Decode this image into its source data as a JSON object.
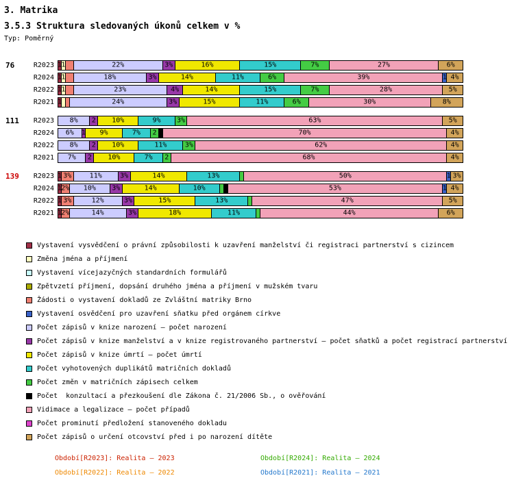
{
  "title": "3. Matrika",
  "subtitle": "3.5.3 Struktura sledovaných úkonů celkem v %",
  "type_label": "Typ: Poměrný",
  "colors": {
    "vysvedceni": "#A03048",
    "zmena_jmena": "#FFFFC0",
    "formulare": "#C8FFFF",
    "zpetvzeti": "#AAAA00",
    "zadosti_brno": "#F08072",
    "osvedceni_cirkev": "#3A62C8",
    "narozeni": "#CCCCFF",
    "manzelstvi": "#9838A8",
    "umrti": "#F0E800",
    "duplikaty": "#33CCCC",
    "zmeny": "#44CC44",
    "konzultace": "#000000",
    "vidimace": "#F2A2B8",
    "prominuti": "#DD44CC",
    "otcovstvi": "#D2A45A"
  },
  "chart_data": {
    "type": "bar",
    "stacked": true,
    "orientation": "horizontal",
    "unit": "%",
    "x_range": [
      0,
      100
    ],
    "grid": false,
    "groups": [
      {
        "label": "76",
        "color": "#000000",
        "rows": [
          {
            "period": "R2023",
            "segments": [
              {
                "key": "vysvedceni",
                "value": 1,
                "label": "1"
              },
              {
                "key": "zmena_jmena",
                "value": 1,
                "label": "1"
              },
              {
                "key": "zadosti_brno",
                "value": 2,
                "label": ""
              },
              {
                "key": "narozeni",
                "value": 22,
                "label": "22%"
              },
              {
                "key": "manzelstvi",
                "value": 3,
                "label": "3%"
              },
              {
                "key": "umrti",
                "value": 16,
                "label": "16%"
              },
              {
                "key": "duplikaty",
                "value": 15,
                "label": "15%"
              },
              {
                "key": "zmeny",
                "value": 7,
                "label": "7%"
              },
              {
                "key": "vidimace",
                "value": 27,
                "label": "27%"
              },
              {
                "key": "otcovstvi",
                "value": 6,
                "label": "6%"
              }
            ]
          },
          {
            "period": "R2024",
            "segments": [
              {
                "key": "vysvedceni",
                "value": 1,
                "label": "1"
              },
              {
                "key": "zmena_jmena",
                "value": 1,
                "label": "1"
              },
              {
                "key": "zadosti_brno",
                "value": 2,
                "label": ""
              },
              {
                "key": "narozeni",
                "value": 18,
                "label": "18%"
              },
              {
                "key": "manzelstvi",
                "value": 3,
                "label": "3%"
              },
              {
                "key": "umrti",
                "value": 14,
                "label": "14%"
              },
              {
                "key": "duplikaty",
                "value": 11,
                "label": "11%"
              },
              {
                "key": "zmeny",
                "value": 6,
                "label": "6%"
              },
              {
                "key": "vidimace",
                "value": 39,
                "label": "39%"
              },
              {
                "key": "osvedceni_cirkev",
                "value": 1,
                "label": "1"
              },
              {
                "key": "otcovstvi",
                "value": 4,
                "label": "4%"
              }
            ]
          },
          {
            "period": "R2022",
            "segments": [
              {
                "key": "vysvedceni",
                "value": 1,
                "label": "1"
              },
              {
                "key": "zmena_jmena",
                "value": 1,
                "label": "1"
              },
              {
                "key": "zadosti_brno",
                "value": 2,
                "label": ""
              },
              {
                "key": "narozeni",
                "value": 23,
                "label": "23%"
              },
              {
                "key": "manzelstvi",
                "value": 4,
                "label": "4%"
              },
              {
                "key": "umrti",
                "value": 14,
                "label": "14%"
              },
              {
                "key": "duplikaty",
                "value": 15,
                "label": "15%"
              },
              {
                "key": "zmeny",
                "value": 7,
                "label": "7%"
              },
              {
                "key": "vidimace",
                "value": 28,
                "label": "28%"
              },
              {
                "key": "otcovstvi",
                "value": 5,
                "label": "5%"
              }
            ]
          },
          {
            "period": "R2021",
            "segments": [
              {
                "key": "vysvedceni",
                "value": 1,
                "label": "1"
              },
              {
                "key": "zmena_jmena",
                "value": 1,
                "label": ""
              },
              {
                "key": "zadosti_brno",
                "value": 1,
                "label": ""
              },
              {
                "key": "narozeni",
                "value": 24,
                "label": "24%"
              },
              {
                "key": "manzelstvi",
                "value": 3,
                "label": "3%"
              },
              {
                "key": "umrti",
                "value": 15,
                "label": "15%"
              },
              {
                "key": "duplikaty",
                "value": 11,
                "label": "11%"
              },
              {
                "key": "zmeny",
                "value": 6,
                "label": "6%"
              },
              {
                "key": "vidimace",
                "value": 30,
                "label": "30%"
              },
              {
                "key": "otcovstvi",
                "value": 8,
                "label": "8%"
              }
            ]
          }
        ]
      },
      {
        "label": "111",
        "color": "#000000",
        "rows": [
          {
            "period": "R2023",
            "segments": [
              {
                "key": "narozeni",
                "value": 8,
                "label": "8%"
              },
              {
                "key": "manzelstvi",
                "value": 2,
                "label": "2"
              },
              {
                "key": "umrti",
                "value": 10,
                "label": "10%"
              },
              {
                "key": "duplikaty",
                "value": 9,
                "label": "9%"
              },
              {
                "key": "zmeny",
                "value": 3,
                "label": "3%"
              },
              {
                "key": "vidimace",
                "value": 63,
                "label": "63%"
              },
              {
                "key": "otcovstvi",
                "value": 5,
                "label": "5%"
              }
            ]
          },
          {
            "period": "R2024",
            "segments": [
              {
                "key": "narozeni",
                "value": 6,
                "label": "6%"
              },
              {
                "key": "manzelstvi",
                "value": 1,
                "label": "1"
              },
              {
                "key": "umrti",
                "value": 9,
                "label": "9%"
              },
              {
                "key": "duplikaty",
                "value": 7,
                "label": "7%"
              },
              {
                "key": "zmeny",
                "value": 2,
                "label": "2"
              },
              {
                "key": "konzultace",
                "value": 1,
                "label": ""
              },
              {
                "key": "vidimace",
                "value": 70,
                "label": "70%"
              },
              {
                "key": "otcovstvi",
                "value": 4,
                "label": "4%"
              }
            ]
          },
          {
            "period": "R2022",
            "segments": [
              {
                "key": "narozeni",
                "value": 8,
                "label": "8%"
              },
              {
                "key": "manzelstvi",
                "value": 2,
                "label": "2"
              },
              {
                "key": "umrti",
                "value": 10,
                "label": "10%"
              },
              {
                "key": "duplikaty",
                "value": 11,
                "label": "11%"
              },
              {
                "key": "zmeny",
                "value": 3,
                "label": "3%"
              },
              {
                "key": "vidimace",
                "value": 62,
                "label": "62%"
              },
              {
                "key": "otcovstvi",
                "value": 4,
                "label": "4%"
              }
            ]
          },
          {
            "period": "R2021",
            "segments": [
              {
                "key": "narozeni",
                "value": 7,
                "label": "7%"
              },
              {
                "key": "manzelstvi",
                "value": 2,
                "label": "2"
              },
              {
                "key": "umrti",
                "value": 10,
                "label": "10%"
              },
              {
                "key": "duplikaty",
                "value": 7,
                "label": "7%"
              },
              {
                "key": "zmeny",
                "value": 2,
                "label": "2"
              },
              {
                "key": "vidimace",
                "value": 68,
                "label": "68%"
              },
              {
                "key": "otcovstvi",
                "value": 4,
                "label": "4%"
              }
            ]
          }
        ]
      },
      {
        "label": "139",
        "color": "#CC0000",
        "rows": [
          {
            "period": "R2023",
            "segments": [
              {
                "key": "vysvedceni",
                "value": 1,
                "label": "1"
              },
              {
                "key": "zadosti_brno",
                "value": 3,
                "label": "3%"
              },
              {
                "key": "narozeni",
                "value": 11,
                "label": "11%"
              },
              {
                "key": "manzelstvi",
                "value": 3,
                "label": "3%"
              },
              {
                "key": "umrti",
                "value": 14,
                "label": "14%"
              },
              {
                "key": "duplikaty",
                "value": 13,
                "label": "13%"
              },
              {
                "key": "zmeny",
                "value": 1,
                "label": ""
              },
              {
                "key": "vidimace",
                "value": 50,
                "label": "50%"
              },
              {
                "key": "osvedceni_cirkev",
                "value": 1,
                "label": "1"
              },
              {
                "key": "otcovstvi",
                "value": 3,
                "label": "3%"
              }
            ]
          },
          {
            "period": "R2024",
            "segments": [
              {
                "key": "vysvedceni",
                "value": 1,
                "label": "1"
              },
              {
                "key": "zadosti_brno",
                "value": 2,
                "label": "2%"
              },
              {
                "key": "narozeni",
                "value": 10,
                "label": "10%"
              },
              {
                "key": "manzelstvi",
                "value": 3,
                "label": "3%"
              },
              {
                "key": "umrti",
                "value": 14,
                "label": "14%"
              },
              {
                "key": "duplikaty",
                "value": 10,
                "label": "10%"
              },
              {
                "key": "zmeny",
                "value": 1,
                "label": ""
              },
              {
                "key": "konzultace",
                "value": 1,
                "label": ""
              },
              {
                "key": "vidimace",
                "value": 53,
                "label": "53%"
              },
              {
                "key": "osvedceni_cirkev",
                "value": 1,
                "label": "1"
              },
              {
                "key": "otcovstvi",
                "value": 4,
                "label": "4%"
              }
            ]
          },
          {
            "period": "R2022",
            "segments": [
              {
                "key": "vysvedceni",
                "value": 1,
                "label": "1"
              },
              {
                "key": "zadosti_brno",
                "value": 3,
                "label": "3%"
              },
              {
                "key": "narozeni",
                "value": 12,
                "label": "12%"
              },
              {
                "key": "manzelstvi",
                "value": 3,
                "label": "3%"
              },
              {
                "key": "umrti",
                "value": 15,
                "label": "15%"
              },
              {
                "key": "duplikaty",
                "value": 13,
                "label": "13%"
              },
              {
                "key": "zmeny",
                "value": 1,
                "label": ""
              },
              {
                "key": "vidimace",
                "value": 47,
                "label": "47%"
              },
              {
                "key": "otcovstvi",
                "value": 5,
                "label": "5%"
              }
            ]
          },
          {
            "period": "R2021",
            "segments": [
              {
                "key": "vysvedceni",
                "value": 1,
                "label": "1"
              },
              {
                "key": "zadosti_brno",
                "value": 2,
                "label": "2%"
              },
              {
                "key": "narozeni",
                "value": 14,
                "label": "14%"
              },
              {
                "key": "manzelstvi",
                "value": 3,
                "label": "3%"
              },
              {
                "key": "umrti",
                "value": 18,
                "label": "18%"
              },
              {
                "key": "duplikaty",
                "value": 11,
                "label": "11%"
              },
              {
                "key": "zmeny",
                "value": 1,
                "label": ""
              },
              {
                "key": "vidimace",
                "value": 44,
                "label": "44%"
              },
              {
                "key": "otcovstvi",
                "value": 6,
                "label": "6%"
              }
            ]
          }
        ]
      }
    ]
  },
  "legend": [
    {
      "key": "vysvedceni",
      "label": "Vystavení vysvědčení o právní způsobilosti k uzavření manželství či registraci partnerství s cizincem"
    },
    {
      "key": "zmena_jmena",
      "label": "Změna jména a příjmení"
    },
    {
      "key": "formulare",
      "label": "Vystavení vícejazyčných standardních formulářů"
    },
    {
      "key": "zpetvzeti",
      "label": "Zpětvzetí příjmení, dopsání druhého jména a příjmení v mužském tvaru"
    },
    {
      "key": "zadosti_brno",
      "label": "Žádosti o vystavení dokladů ze Zvláštní matriky Brno"
    },
    {
      "key": "osvedceni_cirkev",
      "label": "Vystavení osvědčení pro uzavření sňatku před orgánem církve"
    },
    {
      "key": "narozeni",
      "label": "Počet zápisů v knize narození – počet narození"
    },
    {
      "key": "manzelstvi",
      "label": "Počet zápisů v knize manželství a v knize registrovaného partnerství – počet sňatků a počet registrací partnerství"
    },
    {
      "key": "umrti",
      "label": "Počet zápisů v knize úmrtí – počet úmrtí"
    },
    {
      "key": "duplikaty",
      "label": "Počet vyhotovených duplikátů matričních dokladů"
    },
    {
      "key": "zmeny",
      "label": "Počet změn v matričních zápisech celkem"
    },
    {
      "key": "konzultace",
      "label": "Počet  konzultací a přezkoušení dle Zákona č. 21/2006 Sb., o ověřování"
    },
    {
      "key": "vidimace",
      "label": "Vidimace a legalizace – počet případů"
    },
    {
      "key": "prominuti",
      "label": "Počet prominutí předložení stanoveného dokladu"
    },
    {
      "key": "otcovstvi",
      "label": "Počet zápisů o určení otcovství před i po narození dítěte"
    }
  ],
  "periods": [
    {
      "label": "Období[R2023]: Realita – 2023",
      "color": "#CC2200"
    },
    {
      "label": "Období[R2024]: Realita – 2024",
      "color": "#33AA00"
    },
    {
      "label": "Období[R2022]: Realita – 2022",
      "color": "#EE8800"
    },
    {
      "label": "Období[R2021]: Realita – 2021",
      "color": "#2277CC"
    }
  ]
}
